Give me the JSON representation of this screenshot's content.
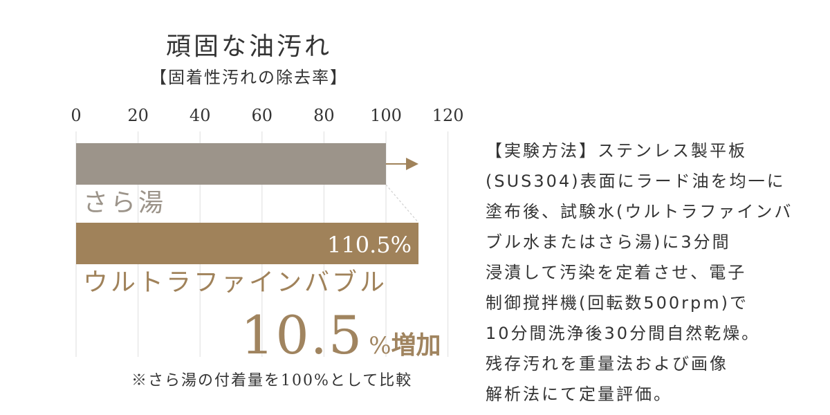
{
  "chart_data": {
    "type": "bar",
    "orientation": "horizontal",
    "title": "頑固な油汚れ",
    "subtitle": "【固着性汚れの除去率】",
    "categories": [
      "さら湯",
      "ウルトラファインバブル"
    ],
    "values": [
      100,
      110.5
    ],
    "value_labels": [
      "",
      "110.5%"
    ],
    "xlim": [
      0,
      120
    ],
    "x_ticks": [
      "0",
      "20",
      "40",
      "60",
      "80",
      "100",
      "120"
    ],
    "grid": true,
    "bar_colors": [
      "#9c948a",
      "#a0825a"
    ],
    "label_colors": [
      "#9c948a",
      "#a0825a"
    ],
    "value_label_color": "#ffffff",
    "annotation": {
      "number": "10.5",
      "unit": "%",
      "suffix": "増加",
      "color": "#a0845f"
    },
    "footnote": "※さら湯の付着量を100%として比較"
  },
  "method": {
    "lines": [
      "【実験方法】ステンレス製平板",
      "(SUS304)表面にラード油を均一に",
      "塗布後、試験水(ウルトラファインバ",
      "ブル水またはさら湯)に3分間",
      "浸漬して汚染を定着させ、電子",
      "制御撹拌機(回転数500rpm)で",
      "10分間洗浄後30分間自然乾燥。",
      "残存汚れを重量法および画像",
      "解析法にて定量評価。"
    ]
  }
}
